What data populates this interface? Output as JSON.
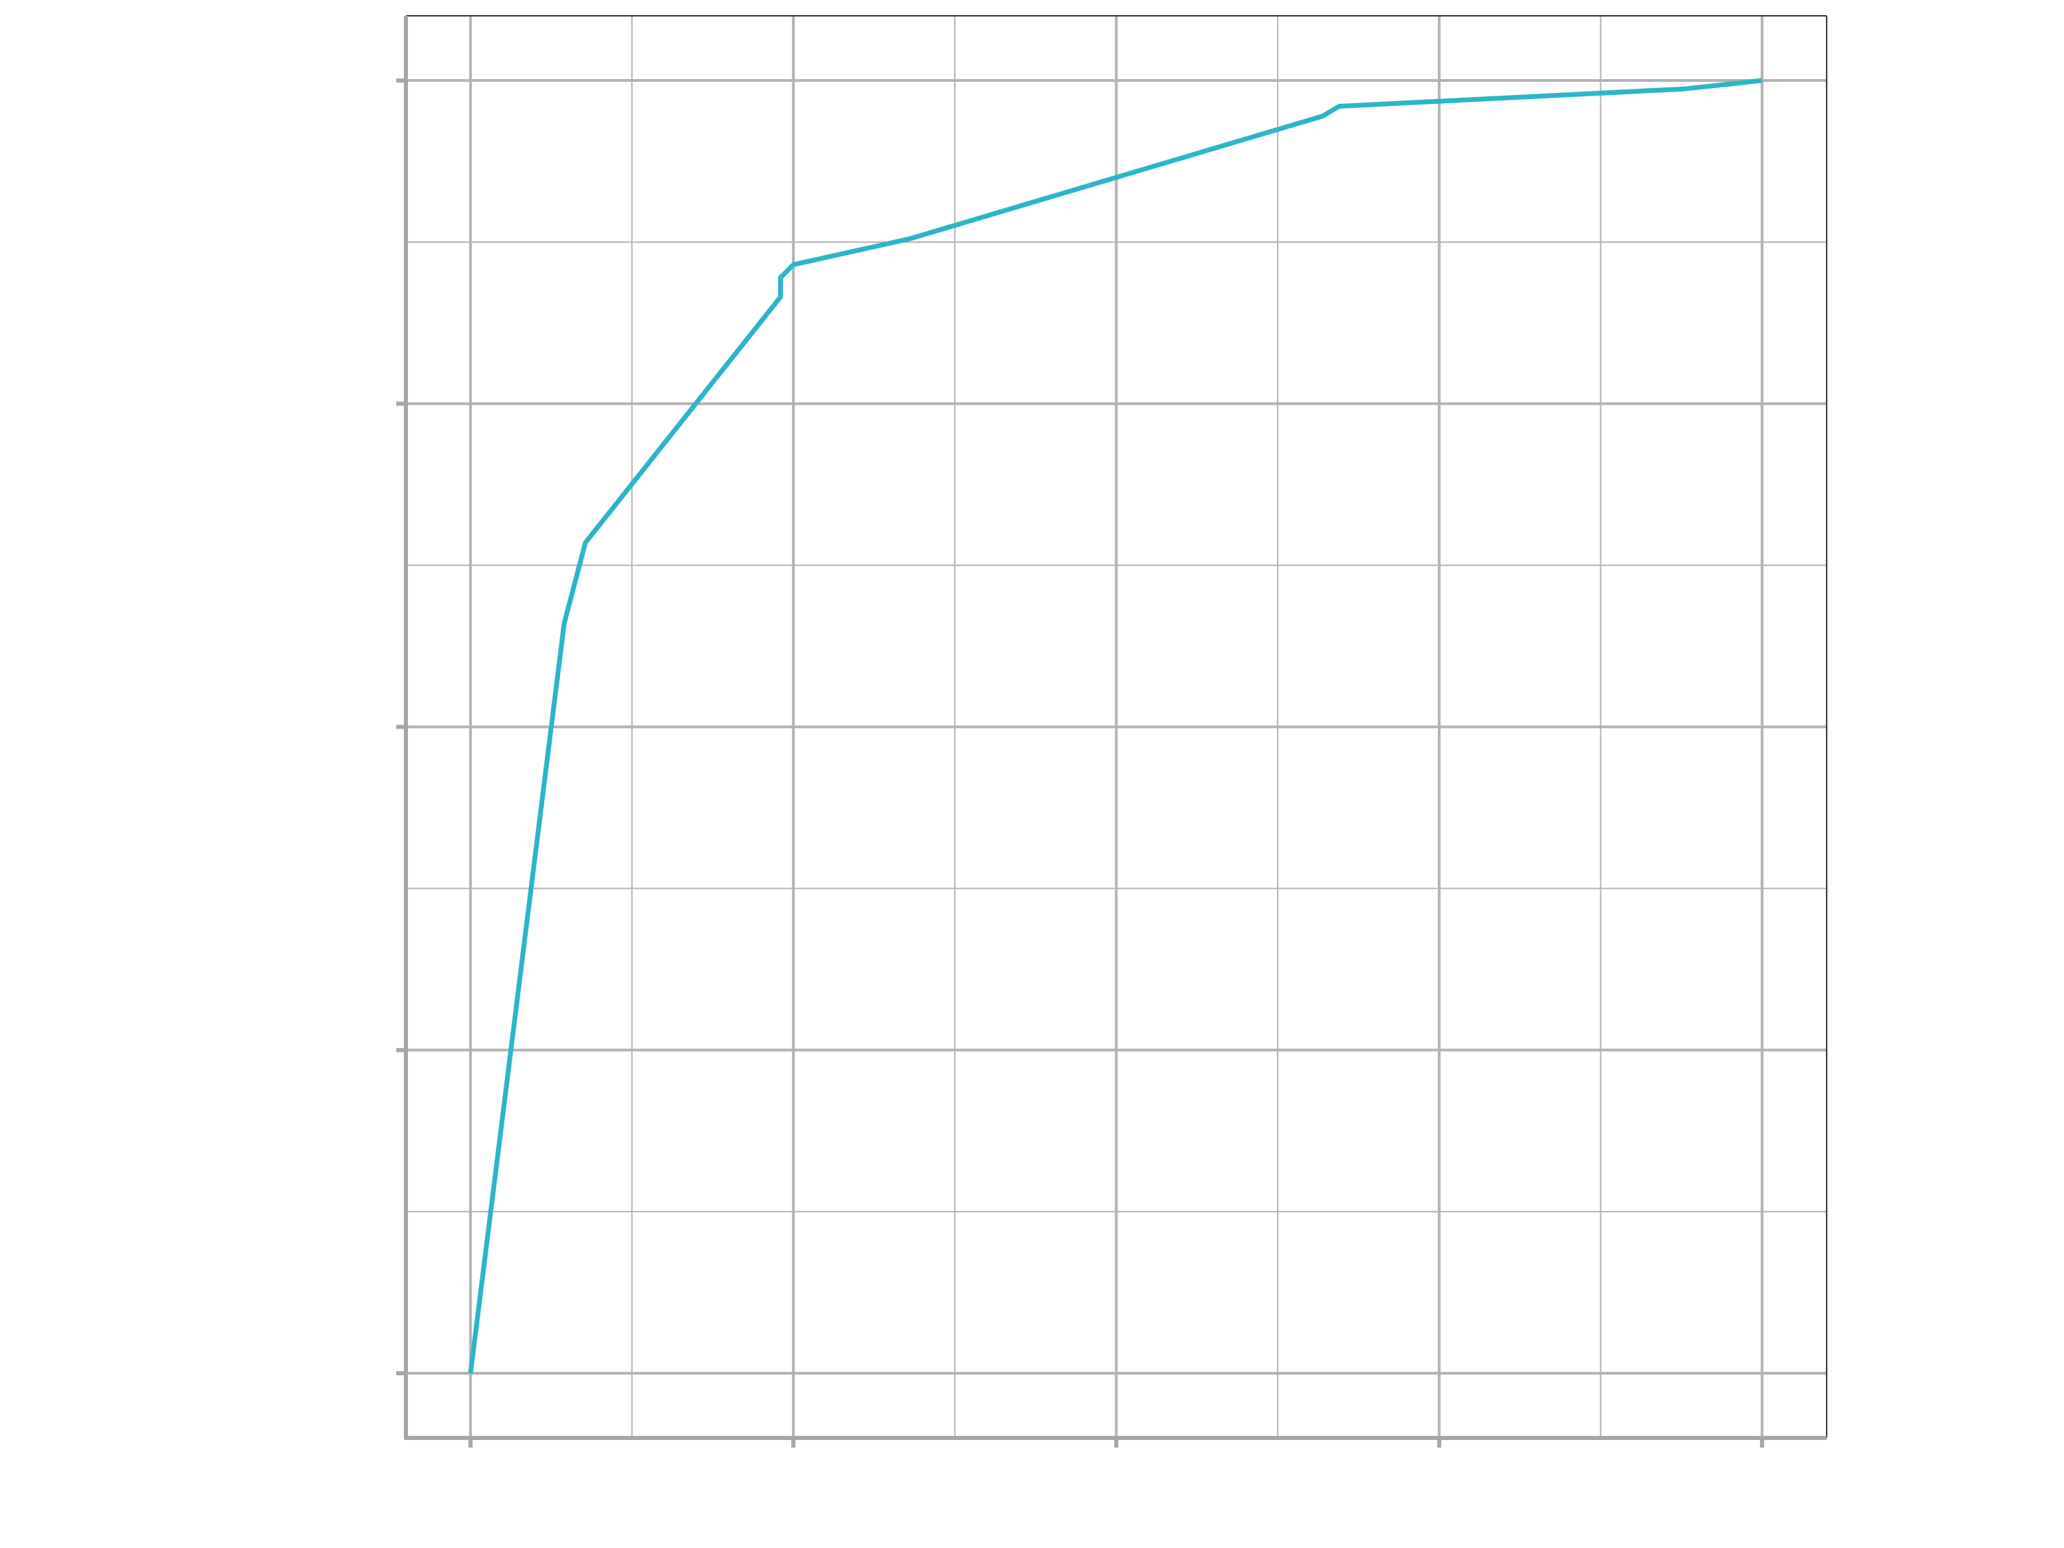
{
  "chart_data": {
    "type": "line",
    "title": "",
    "xlabel": "",
    "ylabel": "",
    "xlim": [
      -0.1,
      2.1
    ],
    "ylim": [
      -0.1,
      2.1
    ],
    "x_ticks": [
      0,
      0.5,
      1,
      1.5,
      2
    ],
    "y_ticks": [
      0,
      0.5,
      1,
      1.5,
      2
    ],
    "grid": true,
    "grid_minor": true,
    "colors": {
      "line": "#2bb6c8",
      "grid": "#b3b3b3",
      "frame": "#333333",
      "axis": "#a6a6a6"
    },
    "series": [
      {
        "x": [
          0,
          0.145,
          0.178,
          0.48,
          0.48,
          0.5,
          0.68,
          1.32,
          1.345,
          1.88,
          2
        ],
        "y": [
          0,
          1.16,
          1.285,
          1.665,
          1.695,
          1.715,
          1.755,
          1.945,
          1.96,
          1.987,
          2
        ]
      }
    ]
  }
}
